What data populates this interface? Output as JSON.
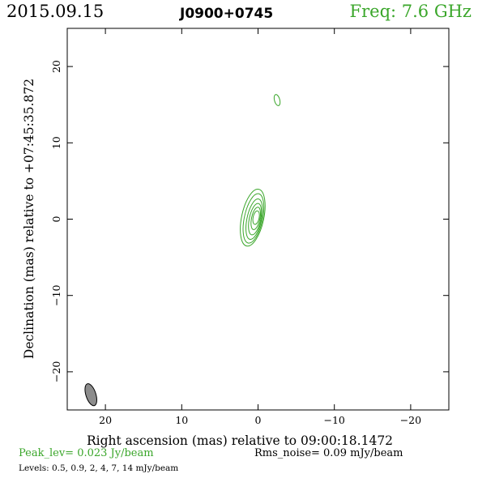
{
  "header": {
    "epoch": "2015.09.15",
    "source": "J0900+0745",
    "frequency": "Freq: 7.6 GHz"
  },
  "footer": {
    "peak": "Peak_lev=  0.023 Jy/beam",
    "rms_noise": "Rms_noise= 0.09 mJy/beam",
    "levels": "Levels: 0.5, 0.9,    2,    4,    7,   14 mJy/beam"
  },
  "colors": {
    "contour": "#3aa62a",
    "frequency_text": "#3aa62a",
    "beam_fill": "#8c8c8c"
  },
  "chart_data": {
    "type": "contour",
    "xlabel": "Right ascension (mas) relative to 09:00:18.1472",
    "ylabel": "Declination (mas) relative to +07:45:35.872",
    "xlim": [
      25,
      -25
    ],
    "ylim": [
      -25,
      25
    ],
    "x_ticks": [
      20,
      10,
      0,
      -10,
      -20
    ],
    "y_ticks": [
      20,
      10,
      0,
      -10,
      -20
    ],
    "x_tick_labels": [
      "20",
      "10",
      "0",
      "−10",
      "−20"
    ],
    "y_tick_labels": [
      "20",
      "10",
      "0",
      "−10",
      "−20"
    ],
    "contour_levels_mJy_per_beam": [
      0.5,
      0.9,
      2,
      4,
      7,
      14
    ],
    "peak_Jy_per_beam": 0.023,
    "rms_noise_mJy_per_beam": 0.09,
    "contours": [
      {
        "level": 0.5,
        "center": [
          0.7,
          0.2
        ],
        "semi_major": 3.8,
        "semi_minor": 1.45,
        "pa_deg": 12
      },
      {
        "level": 0.9,
        "center": [
          0.6,
          0.1
        ],
        "semi_major": 3.3,
        "semi_minor": 1.2,
        "pa_deg": 12
      },
      {
        "level": 2,
        "center": [
          0.5,
          0.0
        ],
        "semi_major": 2.7,
        "semi_minor": 0.95,
        "pa_deg": 12
      },
      {
        "level": 4,
        "center": [
          0.4,
          0.0
        ],
        "semi_major": 2.1,
        "semi_minor": 0.75,
        "pa_deg": 12
      },
      {
        "level": 7,
        "center": [
          0.3,
          0.1
        ],
        "semi_major": 1.5,
        "semi_minor": 0.55,
        "pa_deg": 12
      },
      {
        "level": 14,
        "center": [
          0.25,
          0.2
        ],
        "semi_major": 0.9,
        "semi_minor": 0.4,
        "pa_deg": 12
      },
      {
        "level": 0.5,
        "center": [
          -2.5,
          15.6
        ],
        "semi_major": 0.75,
        "semi_minor": 0.35,
        "pa_deg": -15
      }
    ],
    "beam": {
      "center": [
        21.9,
        -23.0
      ],
      "semi_major": 1.5,
      "semi_minor": 0.65,
      "pa_deg": -18
    }
  }
}
